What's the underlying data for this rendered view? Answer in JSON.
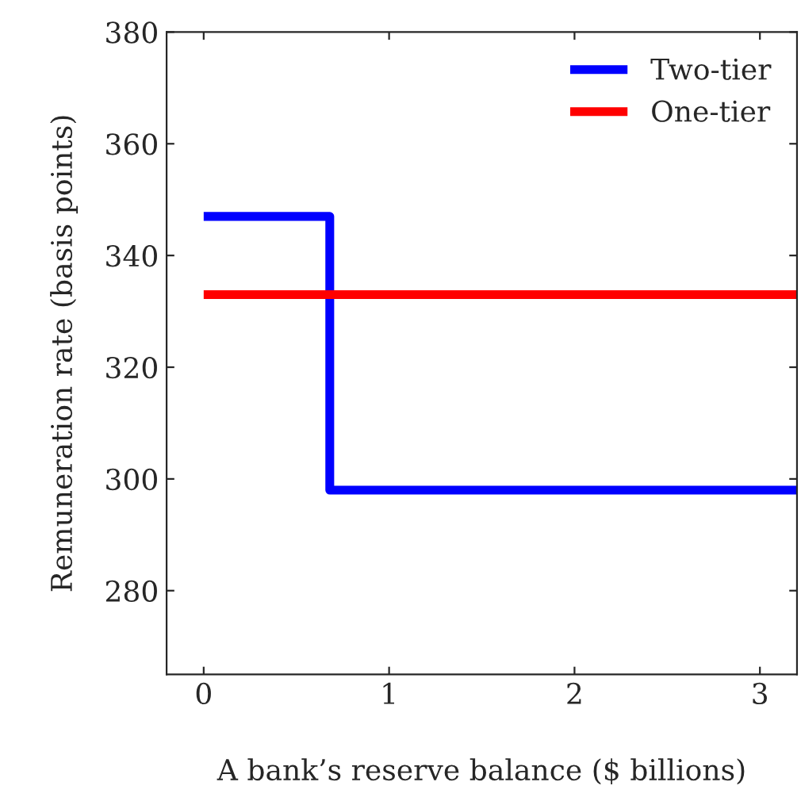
{
  "chart_data": {
    "type": "step",
    "xlabel": "A bank’s reserve balance ($ billions)",
    "ylabel": "Remuneration rate (basis points)",
    "series": [
      {
        "name": "Two-tier",
        "color": "#0000ff",
        "x": [
          0,
          0.68,
          3.2
        ],
        "values": [
          347,
          298,
          298
        ]
      },
      {
        "name": "One-tier",
        "color": "#ff0000",
        "type": "line",
        "x": [
          0,
          3.2
        ],
        "values": [
          333,
          333
        ]
      }
    ],
    "xlim": [
      -0.2,
      3.2
    ],
    "xticks": [
      0,
      1,
      2,
      3
    ],
    "ylim": [
      265,
      380
    ],
    "yticks": [
      280,
      300,
      320,
      340,
      360,
      380
    ],
    "grid": false,
    "legend": "top right"
  }
}
